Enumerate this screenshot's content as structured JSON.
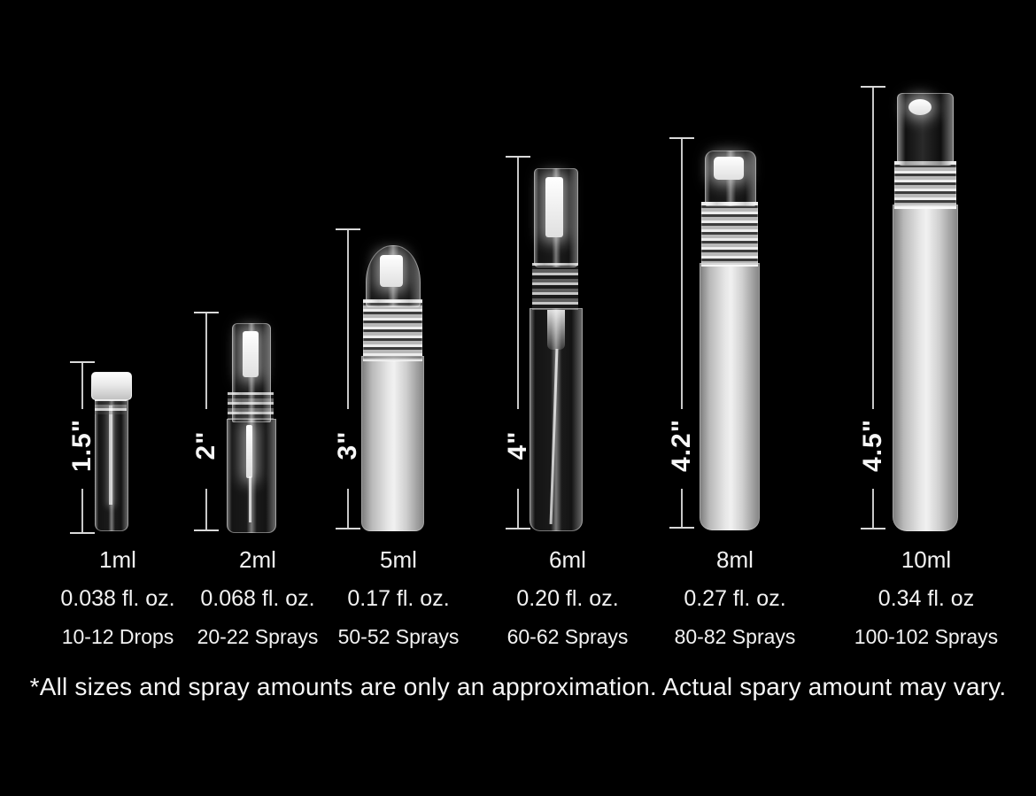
{
  "colors": {
    "background": "#000000",
    "text": "#f2f2f2",
    "dimension_line": "#d9d9d9"
  },
  "bottles": [
    {
      "height": "1.5\"",
      "volume": "1ml",
      "fl_oz": "0.038 fl. oz.",
      "sprays": "10-12 Drops"
    },
    {
      "height": "2\"",
      "volume": "2ml",
      "fl_oz": "0.068 fl. oz.",
      "sprays": "20-22 Sprays"
    },
    {
      "height": "3\"",
      "volume": "5ml",
      "fl_oz": "0.17 fl. oz.",
      "sprays": "50-52 Sprays"
    },
    {
      "height": "4\"",
      "volume": "6ml",
      "fl_oz": "0.20 fl. oz.",
      "sprays": "60-62 Sprays"
    },
    {
      "height": "4.2\"",
      "volume": "8ml",
      "fl_oz": "0.27 fl. oz.",
      "sprays": "80-82 Sprays"
    },
    {
      "height": "4.5\"",
      "volume": "10ml",
      "fl_oz": "0.34 fl. oz",
      "sprays": "100-102 Sprays"
    }
  ],
  "disclaimer": "*All sizes and spray amounts are only an approximation. Actual spary amount may vary."
}
